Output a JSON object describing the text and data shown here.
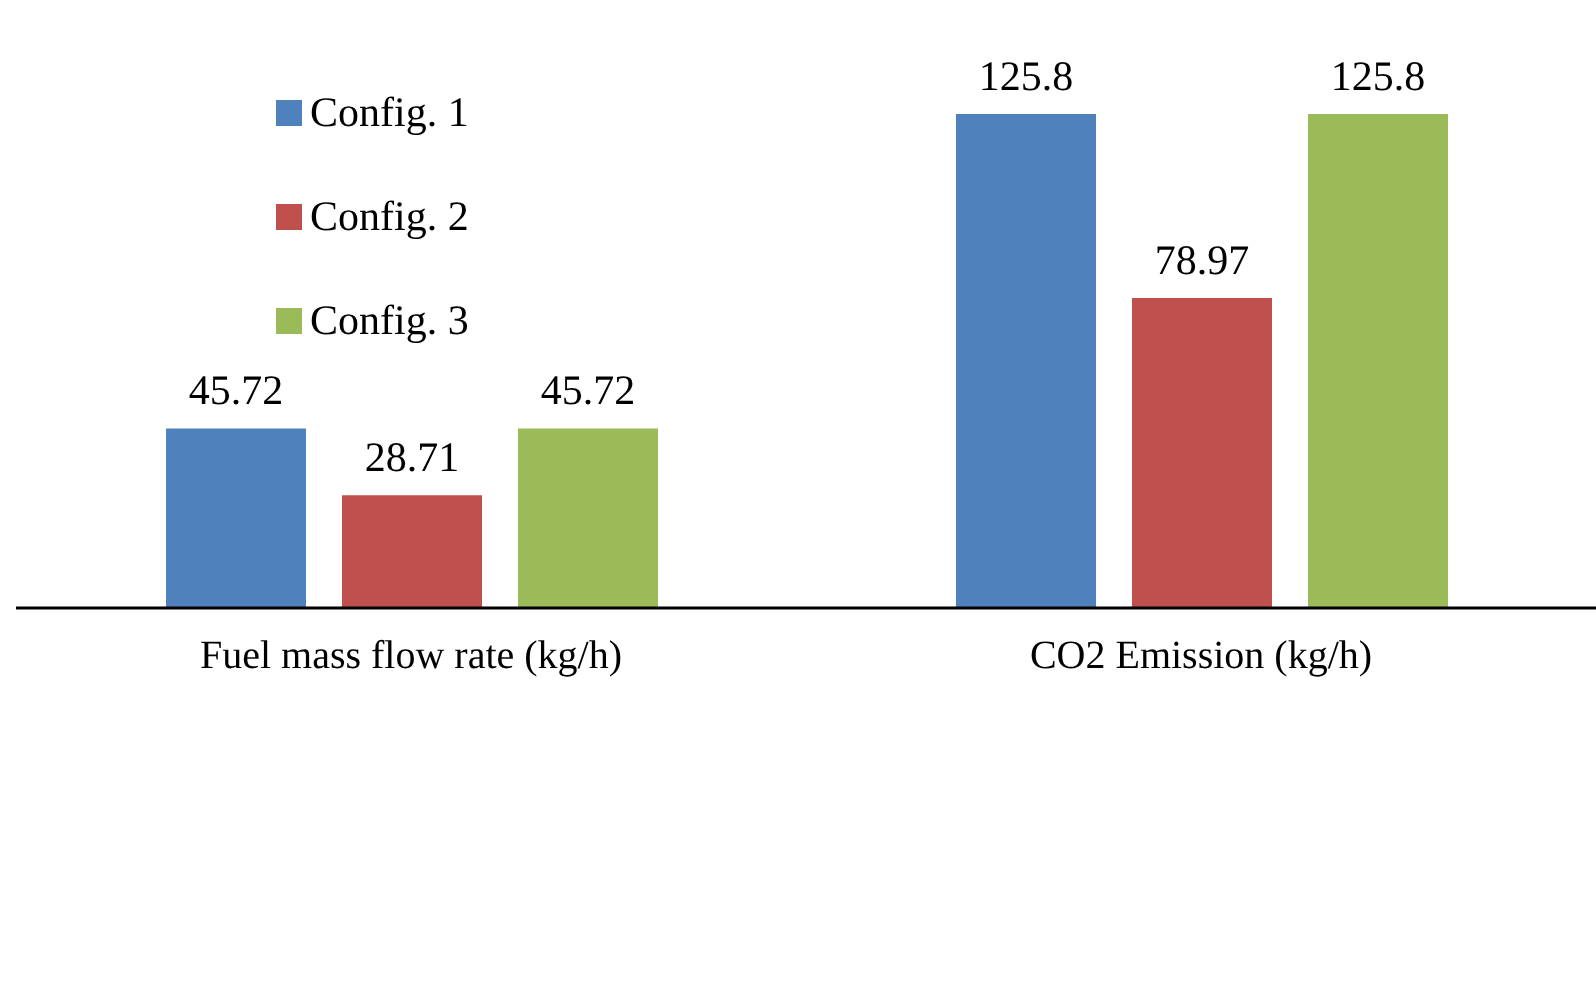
{
  "chart_data": {
    "type": "bar",
    "categories": [
      "Fuel mass flow rate (kg/h)",
      "CO2 Emission (kg/h)"
    ],
    "series": [
      {
        "name": "Config. 1",
        "color": "#4f81bd",
        "values": [
          45.72,
          125.8
        ]
      },
      {
        "name": "Config. 2",
        "color": "#c0504d",
        "values": [
          28.71,
          78.97
        ]
      },
      {
        "name": "Config. 3",
        "color": "#9bbb59",
        "values": [
          45.72,
          125.8
        ]
      }
    ],
    "data_labels": true,
    "legend": "top left",
    "grid": false
  }
}
